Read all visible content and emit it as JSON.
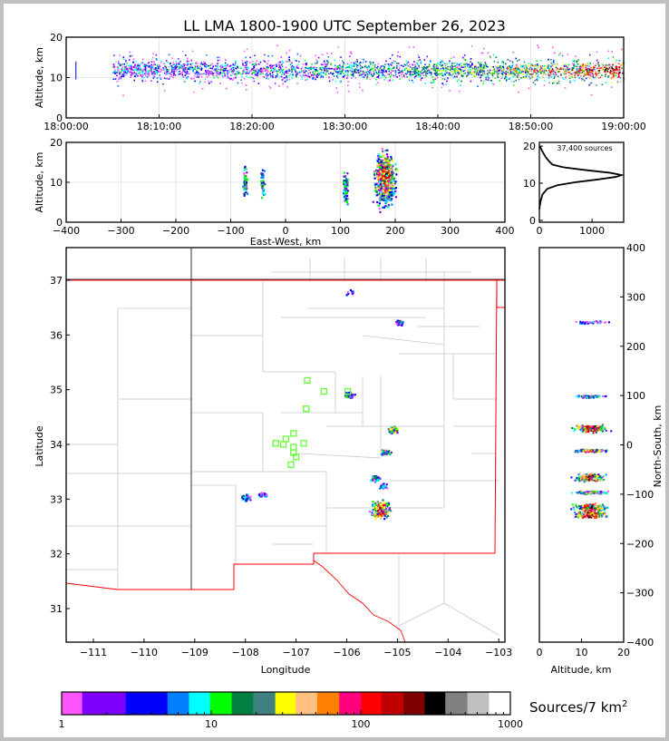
{
  "title": "LL LMA 1800-1900 UTC September 26, 2023",
  "chart_data": [
    {
      "type": "scatter",
      "name": "altitude-vs-time",
      "ylabel": "Altitude, km",
      "ylim": [
        0,
        20
      ],
      "yticks": [
        "0",
        "10",
        "20"
      ],
      "xticks": [
        "18:00:00",
        "18:10:00",
        "18:20:00",
        "18:30:00",
        "18:40:00",
        "18:50:00",
        "19:00:00"
      ],
      "xlim_minutes": [
        0,
        60
      ],
      "activity_start_minute": 5,
      "main_altitude_km": 12
    },
    {
      "type": "scatter",
      "name": "altitude-vs-east-west",
      "xlabel": "East-West, km",
      "ylabel": "Altitude, km",
      "xlim": [
        -400,
        400
      ],
      "ylim": [
        0,
        20
      ],
      "xticks": [
        "−400",
        "−300",
        "−200",
        "−100",
        "0",
        "100",
        "200",
        "300",
        "400"
      ],
      "yticks": [
        "0",
        "10",
        "20"
      ],
      "clusters": [
        {
          "x": -75,
          "alt": 10,
          "n": 60
        },
        {
          "x": -43,
          "alt": 10,
          "n": 40
        },
        {
          "x": 108,
          "alt": 9,
          "n": 90
        },
        {
          "x": 180,
          "alt": 11,
          "n": 600
        }
      ]
    },
    {
      "type": "line",
      "name": "altitude-histogram",
      "annotation": "37,400 sources",
      "xlim": [
        0,
        1600
      ],
      "ylim": [
        0,
        21
      ],
      "xticks": [
        "0",
        "1000"
      ],
      "yticks": [
        "0",
        "10",
        "20"
      ],
      "points": [
        [
          0,
          3
        ],
        [
          20,
          5
        ],
        [
          60,
          7
        ],
        [
          150,
          8.5
        ],
        [
          350,
          9.5
        ],
        [
          700,
          10.3
        ],
        [
          1100,
          11
        ],
        [
          1450,
          11.7
        ],
        [
          1560,
          12.2
        ],
        [
          1350,
          12.8
        ],
        [
          900,
          13.5
        ],
        [
          450,
          14.3
        ],
        [
          250,
          15
        ],
        [
          180,
          16
        ],
        [
          120,
          17
        ],
        [
          60,
          18.5
        ],
        [
          10,
          20
        ]
      ]
    },
    {
      "type": "scatter",
      "name": "plan-view-map",
      "xlabel": "Longitude",
      "ylabel": "Latitude",
      "xlim": [
        -111.55,
        -102.9
      ],
      "ylim": [
        30.4,
        37.6
      ],
      "xticks": [
        "−111",
        "−110",
        "−109",
        "−108",
        "−107",
        "−106",
        "−105",
        "−104",
        "−103"
      ],
      "yticks": [
        "31",
        "32",
        "33",
        "34",
        "35",
        "36",
        "37"
      ],
      "stations": [
        [
          -106.78,
          35.17
        ],
        [
          -106.45,
          34.97
        ],
        [
          -106.8,
          34.65
        ],
        [
          -107.05,
          34.2
        ],
        [
          -107.2,
          34.1
        ],
        [
          -107.4,
          34.02
        ],
        [
          -107.25,
          34.0
        ],
        [
          -107.05,
          33.95
        ],
        [
          -106.85,
          34.02
        ],
        [
          -107.05,
          33.85
        ],
        [
          -107.0,
          33.77
        ],
        [
          -107.1,
          33.63
        ],
        [
          -105.98,
          34.97
        ]
      ],
      "clusters": [
        {
          "lon": -105.95,
          "lat": 36.8,
          "n": 10
        },
        {
          "lon": -104.97,
          "lat": 36.24,
          "n": 30
        },
        {
          "lon": -105.95,
          "lat": 34.92,
          "n": 40
        },
        {
          "lon": -105.1,
          "lat": 34.28,
          "n": 80
        },
        {
          "lon": -105.25,
          "lat": 33.87,
          "n": 50
        },
        {
          "lon": -105.45,
          "lat": 33.4,
          "n": 40
        },
        {
          "lon": -105.3,
          "lat": 33.25,
          "n": 30
        },
        {
          "lon": -105.35,
          "lat": 32.82,
          "n": 220
        },
        {
          "lon": -108.0,
          "lat": 33.05,
          "n": 40
        },
        {
          "lon": -107.68,
          "lat": 33.1,
          "n": 30
        }
      ]
    },
    {
      "type": "scatter",
      "name": "north-south-vs-altitude",
      "xlabel": "Altitude, km",
      "ylabel": "North-South, km",
      "xlim": [
        0,
        20
      ],
      "ylim": [
        -400,
        400
      ],
      "xticks": [
        "0",
        "10",
        "20"
      ],
      "yticks": [
        "−400",
        "−300",
        "−200",
        "−100",
        "0",
        "100",
        "200",
        "300",
        "400"
      ]
    }
  ],
  "colorbar": {
    "label": "Sources/7 km",
    "label_sup": "2",
    "ticks": [
      "1",
      "10",
      "100",
      "1000"
    ],
    "edges": [
      1,
      1.37,
      2.68,
      5.1,
      7.1,
      9.8,
      13.7,
      19.1,
      26.8,
      36.7,
      51.1,
      71.8,
      100.4,
      137,
      193,
      267,
      367,
      516,
      720,
      1000
    ],
    "colors": [
      "#ff55ff",
      "#8000ff",
      "#0000ff",
      "#0080ff",
      "#00ffff",
      "#00ff00",
      "#008040",
      "#408080",
      "#ffff00",
      "#ffc080",
      "#ff8000",
      "#ff0080",
      "#ff0000",
      "#c00000",
      "#800000",
      "#000000",
      "#808080",
      "#c0c0c0",
      "#ffffff"
    ]
  }
}
